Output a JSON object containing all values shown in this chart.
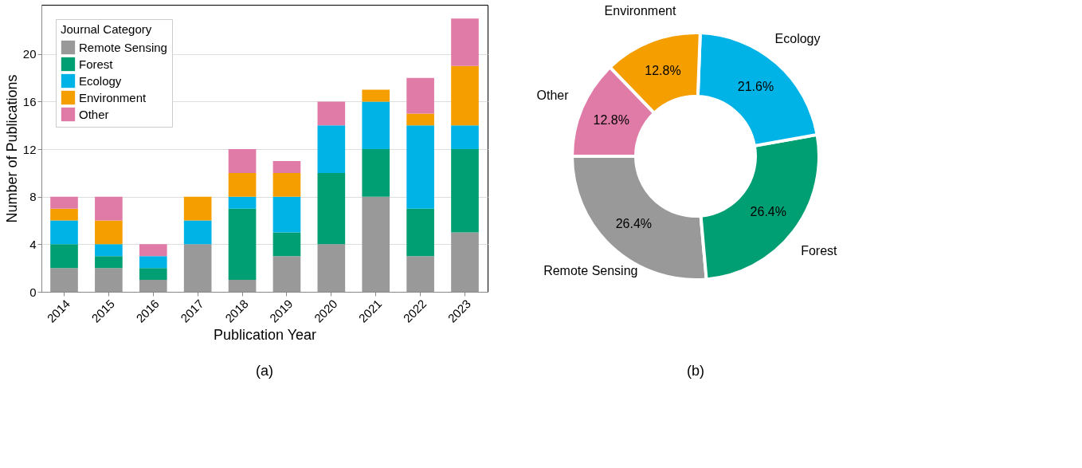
{
  "chart_data": [
    {
      "type": "bar",
      "stacked": true,
      "xlabel": "Publication Year",
      "ylabel": "Number of Publications",
      "legend_title": "Journal Category",
      "legend": "top left",
      "grid": "y",
      "categories": [
        "2014",
        "2015",
        "2016",
        "2017",
        "2018",
        "2019",
        "2020",
        "2021",
        "2022",
        "2023"
      ],
      "series": [
        {
          "name": "Remote Sensing",
          "color": "#999999",
          "values": [
            2,
            2,
            1,
            4,
            1,
            3,
            4,
            8,
            3,
            5
          ]
        },
        {
          "name": "Forest",
          "color": "#009e73",
          "values": [
            2,
            1,
            1,
            0,
            6,
            2,
            6,
            4,
            4,
            7
          ]
        },
        {
          "name": "Ecology",
          "color": "#00b3e6",
          "values": [
            2,
            1,
            1,
            2,
            1,
            3,
            4,
            4,
            7,
            2
          ]
        },
        {
          "name": "Environment",
          "color": "#f59e00",
          "values": [
            1,
            2,
            0,
            2,
            2,
            2,
            0,
            1,
            1,
            5
          ]
        },
        {
          "name": "Other",
          "color": "#e07ba8",
          "values": [
            1,
            2,
            1,
            0,
            2,
            1,
            2,
            0,
            3,
            4
          ]
        }
      ],
      "ylim": [
        0,
        24.15
      ],
      "yticks": [
        0,
        4,
        8,
        12,
        16,
        20
      ],
      "annotations": [
        "(a)"
      ]
    },
    {
      "type": "donut",
      "categories": [
        "Remote Sensing",
        "Forest",
        "Ecology",
        "Environment",
        "Other"
      ],
      "values": [
        26.4,
        26.4,
        21.6,
        12.8,
        12.8
      ],
      "value_labels": [
        "26.4%",
        "26.4%",
        "21.6%",
        "12.8%",
        "12.8%"
      ],
      "colors": [
        "#999999",
        "#009e73",
        "#00b3e6",
        "#f59e00",
        "#e07ba8"
      ],
      "annotations": [
        "(b)"
      ]
    }
  ]
}
